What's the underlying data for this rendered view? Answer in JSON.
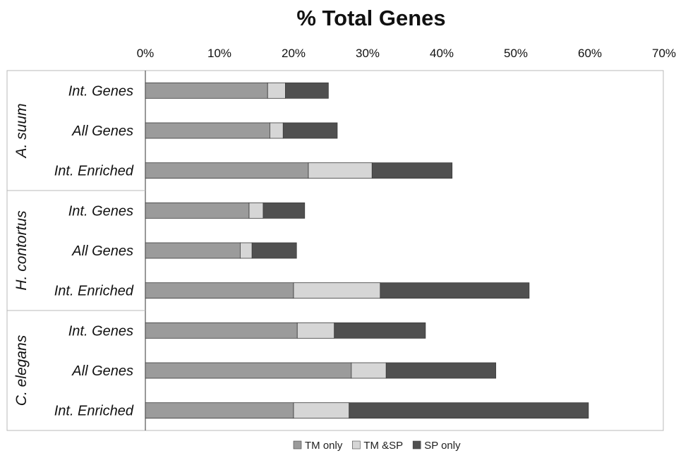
{
  "chart_data": {
    "type": "bar",
    "orientation": "horizontal",
    "stacked": true,
    "title": "% Total Genes",
    "xlabel": "",
    "ylabel": "",
    "xlim": [
      0,
      70
    ],
    "x_ticks": [
      "0%",
      "10%",
      "20%",
      "30%",
      "40%",
      "50%",
      "60%",
      "70%"
    ],
    "grid": false,
    "legend_position": "bottom",
    "groups": [
      {
        "name": "A. suum",
        "categories": [
          "Int. Genes",
          "All Genes",
          "Int. Enriched"
        ]
      },
      {
        "name": "H. contortus",
        "categories": [
          "Int. Genes",
          "All Genes",
          "Int. Enriched"
        ]
      },
      {
        "name": "C. elegans",
        "categories": [
          "Int. Genes",
          "All Genes",
          "Int. Enriched"
        ]
      }
    ],
    "series": [
      {
        "name": "TM only",
        "color": "#9b9b9b",
        "values": [
          16.5,
          16.8,
          22.0,
          14.0,
          12.8,
          20.0,
          20.5,
          27.8,
          20.0
        ]
      },
      {
        "name": "TM &SP",
        "color": "#d6d6d6",
        "values": [
          2.4,
          1.8,
          8.6,
          1.9,
          1.6,
          11.7,
          5.0,
          4.7,
          7.5
        ]
      },
      {
        "name": "SP only",
        "color": "#505050",
        "values": [
          5.8,
          7.3,
          10.8,
          5.6,
          6.0,
          20.1,
          12.3,
          14.8,
          32.3
        ]
      }
    ]
  }
}
